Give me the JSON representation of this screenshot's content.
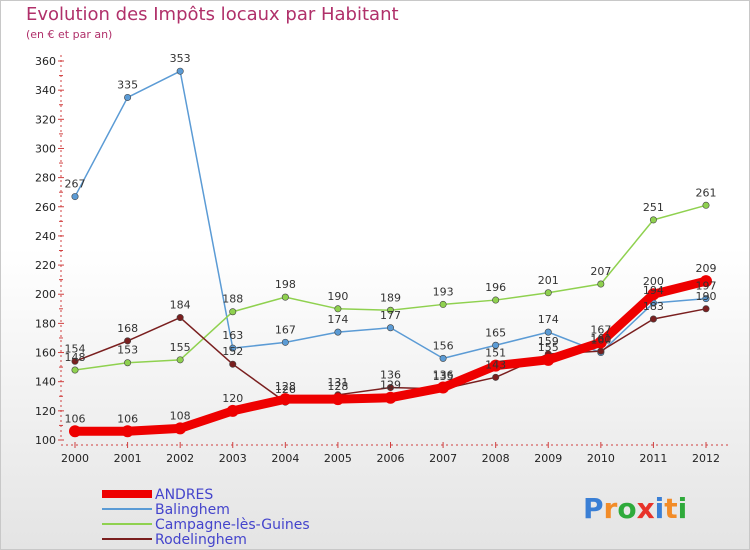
{
  "chart_data": {
    "type": "line",
    "title": "Evolution des Impôts locaux par Habitant",
    "subtitle": "(en € et par an)",
    "x": [
      "2000",
      "2001",
      "2002",
      "2003",
      "2004",
      "2005",
      "2006",
      "2007",
      "2008",
      "2009",
      "2010",
      "2011",
      "2012"
    ],
    "yticks": [
      100,
      120,
      140,
      160,
      180,
      200,
      220,
      240,
      260,
      280,
      300,
      320,
      340,
      360
    ],
    "ylim": [
      100,
      360
    ],
    "series": [
      {
        "name": "ANDRES",
        "color": "#ee0000",
        "values": [
          106,
          106,
          108,
          120,
          128,
          128,
          129,
          136,
          151,
          155,
          167,
          200,
          209
        ]
      },
      {
        "name": "Balinghem",
        "color": "#5b9bd5",
        "values": [
          267,
          335,
          353,
          163,
          167,
          174,
          177,
          156,
          165,
          174,
          160,
          194,
          197
        ]
      },
      {
        "name": "Campagne-lès-Guines",
        "color": "#8fd14f",
        "values": [
          148,
          153,
          155,
          188,
          198,
          190,
          189,
          193,
          196,
          201,
          207,
          251,
          261
        ]
      },
      {
        "name": "Rodelinghem",
        "color": "#7a1f1f",
        "values": [
          154,
          168,
          184,
          152,
          126,
          131,
          136,
          135,
          143,
          159,
          161,
          183,
          190
        ]
      }
    ],
    "grid": false,
    "legend": "bottom-left"
  },
  "logo": {
    "letters": [
      "P",
      "r",
      "o",
      "x",
      "i",
      "t",
      "i"
    ],
    "colors": [
      "#3a7fd5",
      "#f28c28",
      "#2faa3b",
      "#e8332a",
      "#3a7fd5",
      "#f28c28",
      "#2faa3b"
    ]
  }
}
